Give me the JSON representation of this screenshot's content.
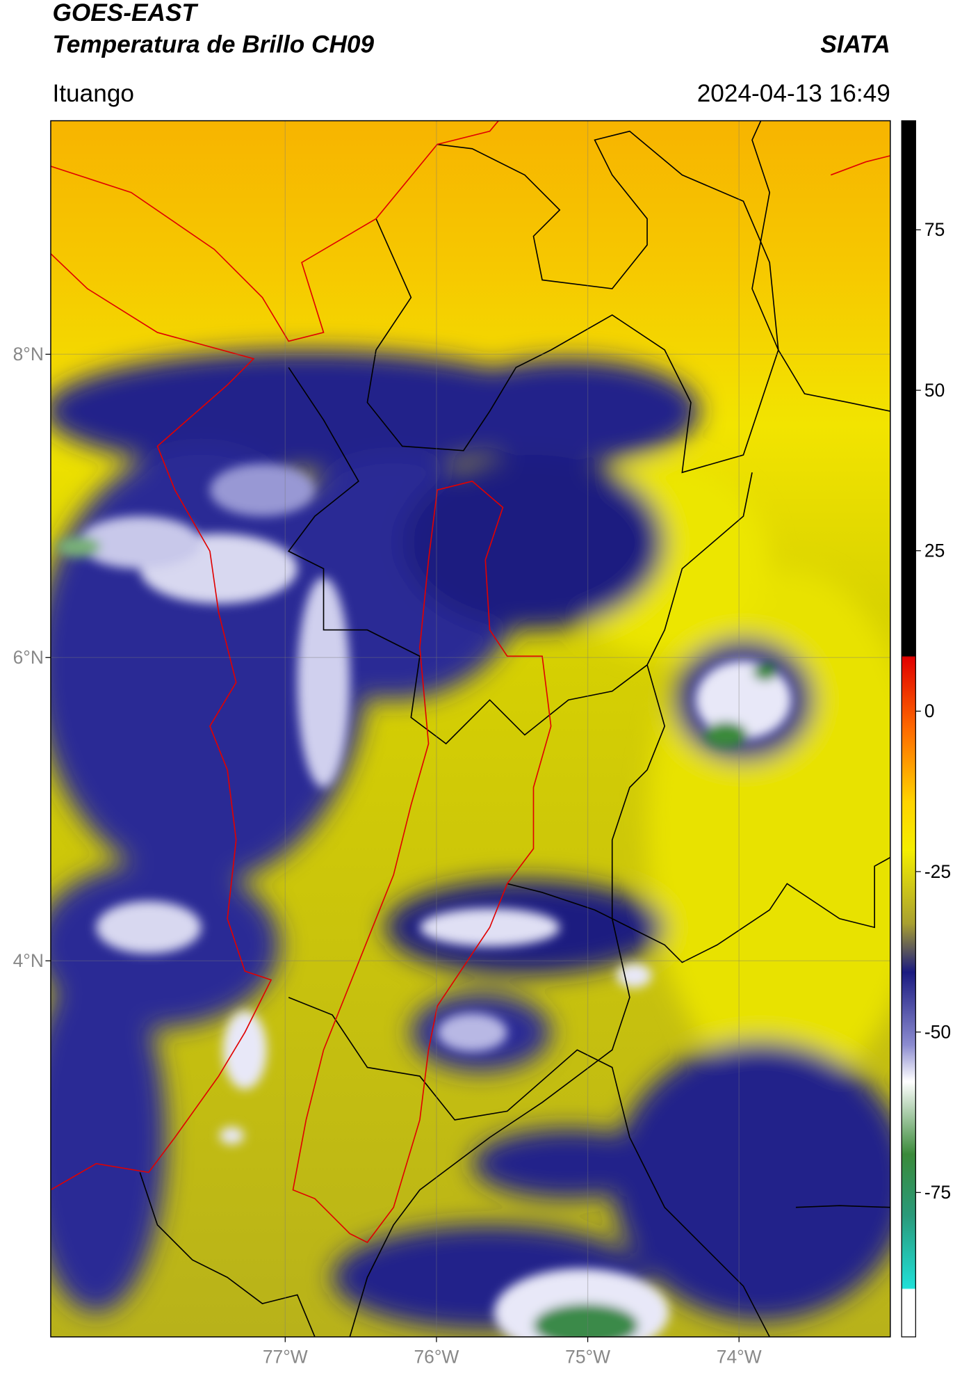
{
  "header": {
    "title": "GOES-EAST",
    "subtitle": "Temperatura de Brillo CH09",
    "source": "SIATA",
    "location": "Ituango",
    "datetime": "2024-04-13 16:49"
  },
  "map": {
    "xlim": [
      -78.55,
      -73.0
    ],
    "ylim": [
      1.52,
      9.54
    ],
    "xticks": [
      {
        "value": -77,
        "label": "77°W"
      },
      {
        "value": -76,
        "label": "76°W"
      },
      {
        "value": -75,
        "label": "75°W"
      },
      {
        "value": -74,
        "label": "74°W"
      }
    ],
    "yticks": [
      {
        "value": 8,
        "label": "8°N"
      },
      {
        "value": 6,
        "label": "6°N"
      },
      {
        "value": 4,
        "label": "4°N"
      }
    ],
    "grid": true
  },
  "colorbar": {
    "lim": [
      -97.5,
      92
    ],
    "ticks": [
      75,
      50,
      25,
      0,
      -25,
      -50,
      -75
    ]
  }
}
